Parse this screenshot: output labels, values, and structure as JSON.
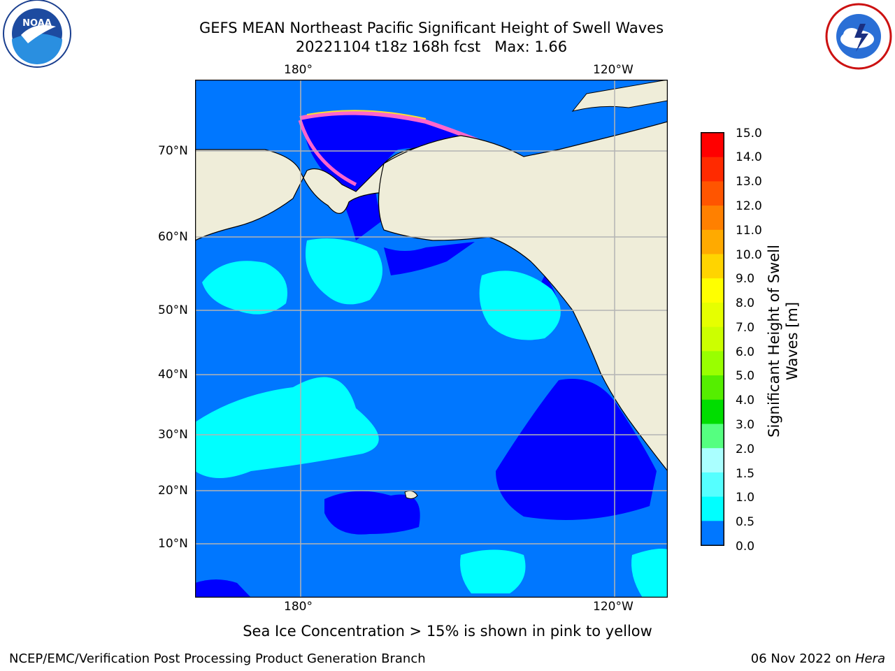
{
  "title": {
    "line1": "GEFS MEAN Northeast Pacific Significant Height of Swell Waves",
    "line2": "20221104 t18z 168h fcst   Max: 1.66"
  },
  "logos": {
    "noaa_text": "NOAA",
    "noaa_ring": "NATIONAL OCEANIC AND ATMOSPHERIC ADMINISTRATION · U.S. DEPARTMENT OF COMMERCE",
    "nws_ring": "NATIONAL WEATHER SERVICE"
  },
  "map": {
    "top_lon_labels": [
      "180°",
      "120°W"
    ],
    "bottom_lon_labels": [
      "180°",
      "120°W"
    ],
    "lat_labels": [
      "70°N",
      "60°N",
      "50°N",
      "40°N",
      "30°N",
      "20°N",
      "10°N"
    ],
    "colors": {
      "land": "#efedd9",
      "swell_0_0_5": "#0000ff",
      "swell_0_5_1": "#0077ff",
      "swell_1_1_5": "#00ffff",
      "swell_1_5_2": "#55ffff",
      "ice_pink": "#ff66cc",
      "ice_yellow": "#ffdd33",
      "grid": "#b4b4b4"
    }
  },
  "colorbar": {
    "title_line1": "Significant Height of Swell",
    "title_line2": "Waves [m]",
    "ticks": [
      "15.0",
      "14.0",
      "13.0",
      "12.0",
      "11.0",
      "10.0",
      "9.0",
      "8.0",
      "7.0",
      "6.0",
      "5.0",
      "4.0",
      "3.0",
      "2.0",
      "1.5",
      "1.0",
      "0.5",
      "0.0"
    ],
    "colors": [
      "#ff0000",
      "#ff2a00",
      "#ff5500",
      "#ff8000",
      "#ffaa00",
      "#ffd400",
      "#ffff00",
      "#e6ff00",
      "#ccff00",
      "#99ff00",
      "#55ee00",
      "#00dd00",
      "#55ff80",
      "#aaffff",
      "#55ffff",
      "#00ffff",
      "#0077ff",
      "#0000ff"
    ]
  },
  "caption": "Sea Ice Concentration > 15% is shown in pink to yellow",
  "footer": {
    "left": "NCEP/EMC/Verification Post Processing Product Generation Branch",
    "right_prefix": "06 Nov 2022 on ",
    "right_host": "Hera"
  }
}
